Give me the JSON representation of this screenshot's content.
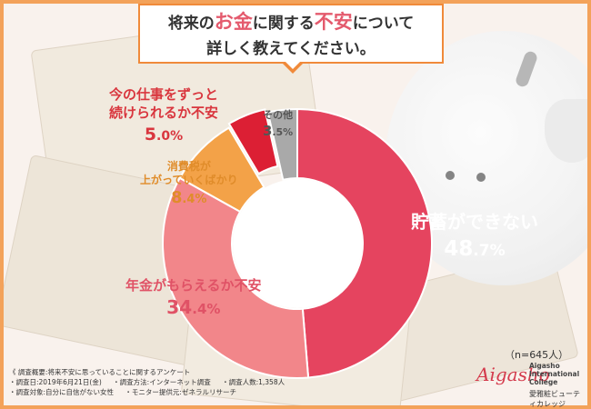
{
  "title": {
    "line1_parts": [
      "将来の",
      "お金",
      "に関する",
      "不安",
      "について"
    ],
    "line2": "詳しく教えてください。"
  },
  "colors": {
    "savings": "#e5445f",
    "pension": "#f2868a",
    "tax": "#f3a248",
    "job": "#dc1f34",
    "other": "#a9a9a9",
    "frame": "#f3a25a",
    "title_border": "#f08a3a"
  },
  "labels": {
    "savings": {
      "name": "貯蓄ができない",
      "value": "48",
      "unit": ".7%"
    },
    "pension": {
      "name": "年金がもらえるか不安",
      "value": "34",
      "unit": ".4%"
    },
    "tax": {
      "name_line1": "消費税が",
      "name_line2": "上がっていくばかり",
      "value": "8",
      "unit": ".4%"
    },
    "job": {
      "name_line1": "今の仕事をずっと",
      "name_line2": "続けられるか不安",
      "value": "5",
      "unit": ".0%"
    },
    "other": {
      "name": "その他",
      "value": "3",
      "unit": ".5%"
    }
  },
  "sample_size": "（n=645人）",
  "notes": {
    "heading": "《 調査概要:将来不安に思っていることに関するアンケート",
    "date": "・調査日:2019年6月21日(金)",
    "method": "・調査方法:インターネット調査",
    "count": "・調査人数:1,358人",
    "target": "・調査対象:自分に自信がない女性",
    "provider": "・モニター提供元:ゼネラルリサーチ"
  },
  "logo": {
    "script": "Aigasho",
    "en_line1": "Aigasho",
    "en_line2": "International",
    "en_line3": "College",
    "jp": "愛雅粧ビューティカレッジ"
  },
  "chart_data": {
    "type": "pie",
    "donut": true,
    "labels": [
      "貯蓄ができない",
      "年金がもらえるか不安",
      "消費税が上がっていくばかり",
      "今の仕事をずっと続けられるか不安",
      "その他"
    ],
    "values": [
      48.7,
      34.4,
      8.4,
      5.0,
      3.5
    ],
    "exploded": [
      "今の仕事をずっと続けられるか不安"
    ]
  }
}
